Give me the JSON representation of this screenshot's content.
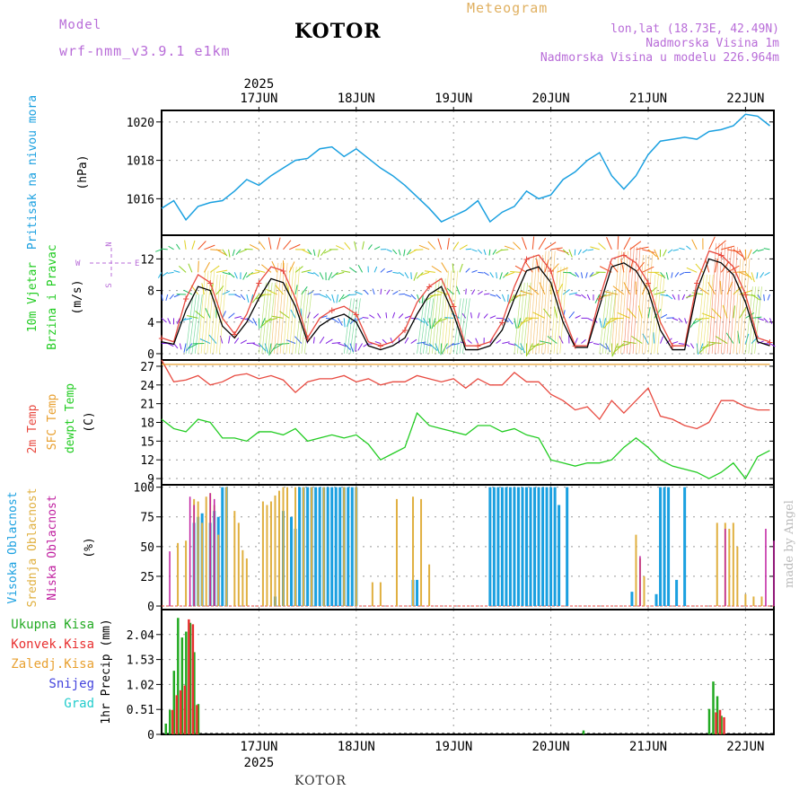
{
  "header": {
    "model_label": "Model",
    "model_name": "wrf-nmm_v3.9.1 e1km",
    "station": "KOTOR",
    "meteogram_label": "Meteogram",
    "lonlat": "lon,lat (18.73E, 42.49N)",
    "altitude": "Nadmorska Visina 1m",
    "model_altitude": "Nadmorska Visina u modelu 226.964m"
  },
  "footer": {
    "station": "KOTOR",
    "watermark": "made by Angel"
  },
  "colors": {
    "pressure": "#1aa0e0",
    "temp2m": "#e84a40",
    "sfc_temp": "#e8a030",
    "dewpoint": "#22cc22",
    "high_cloud": "#1aa0e0",
    "mid_cloud": "#e0b040",
    "low_cloud": "#c020a0",
    "total_precip": "#22aa22",
    "conv_precip": "#e83030",
    "snow": "#4444dd",
    "graupel": "#22cccc"
  },
  "chart_data": [
    {
      "type": "line",
      "name": "pressure",
      "ylabel_main": "Pritisak na nivou mora",
      "ylabel_unit": "(hPa)",
      "yticks": [
        1016,
        1018,
        1020
      ],
      "ylim": [
        1014.1,
        1020.6
      ],
      "x_hours": [
        0,
        3,
        6,
        9,
        12,
        15,
        18,
        21,
        24,
        27,
        30,
        33,
        36,
        39,
        42,
        45,
        48,
        51,
        54,
        57,
        60,
        63,
        66,
        69,
        72,
        75,
        78,
        81,
        84,
        87,
        90,
        93,
        96,
        99,
        102,
        105,
        108,
        111,
        114,
        117,
        120,
        123,
        126,
        129,
        132,
        135,
        138,
        141,
        144,
        147,
        150
      ],
      "values": [
        1015.5,
        1015.9,
        1014.9,
        1015.6,
        1015.8,
        1015.9,
        1016.4,
        1017.0,
        1016.7,
        1017.2,
        1017.6,
        1018.0,
        1018.1,
        1018.6,
        1018.7,
        1018.2,
        1018.6,
        1018.1,
        1017.6,
        1017.2,
        1016.7,
        1016.1,
        1015.5,
        1014.8,
        1015.1,
        1015.4,
        1015.9,
        1014.8,
        1015.3,
        1015.6,
        1016.4,
        1016.0,
        1016.2,
        1017.0,
        1017.4,
        1018.0,
        1018.4,
        1017.2,
        1016.5,
        1017.2,
        1018.3,
        1019.0,
        1019.1,
        1019.2,
        1019.1,
        1019.5,
        1019.6,
        1019.8,
        1020.4,
        1020.3,
        1019.8
      ]
    },
    {
      "type": "line",
      "name": "wind",
      "ylabel_main": "10m Vjetar",
      "ylabel_sub": "Brzina i Pravac",
      "ylabel_unit": "(m/s)",
      "yticks": [
        0,
        4,
        8,
        12
      ],
      "ylim": [
        -0.8,
        15
      ],
      "dir_legend": {
        "n": "N",
        "s": "S",
        "w": "W",
        "e": "E"
      },
      "x_hours": [
        0,
        3,
        6,
        9,
        12,
        15,
        18,
        21,
        24,
        27,
        30,
        33,
        36,
        39,
        42,
        45,
        48,
        51,
        54,
        57,
        60,
        63,
        66,
        69,
        72,
        75,
        78,
        81,
        84,
        87,
        90,
        93,
        96,
        99,
        102,
        105,
        108,
        111,
        114,
        117,
        120,
        123,
        126,
        129,
        132,
        135,
        138,
        141,
        144,
        147,
        150
      ],
      "series": [
        {
          "name": "speed",
          "values": [
            1.5,
            1.2,
            5.5,
            8.5,
            8.0,
            3.5,
            2.0,
            4.0,
            7.0,
            9.5,
            9.0,
            6.0,
            1.5,
            3.5,
            4.5,
            5.0,
            4.0,
            1.0,
            0.5,
            1.0,
            2.0,
            5.0,
            7.5,
            8.5,
            5.0,
            0.5,
            0.5,
            1.0,
            3.0,
            7.0,
            10.5,
            11.0,
            9.0,
            4.0,
            0.8,
            0.8,
            6.0,
            11.0,
            11.5,
            10.5,
            8.0,
            3.0,
            0.5,
            0.5,
            8.0,
            12.0,
            11.5,
            10.0,
            6.5,
            1.5,
            1.0
          ]
        },
        {
          "name": "gust",
          "values": [
            2.0,
            1.5,
            7.0,
            10.0,
            9.0,
            4.5,
            2.5,
            5.0,
            9.0,
            11.0,
            10.5,
            7.0,
            2.0,
            4.5,
            5.5,
            6.0,
            5.0,
            1.5,
            1.0,
            1.5,
            3.0,
            6.5,
            8.5,
            9.5,
            6.0,
            1.0,
            1.0,
            1.5,
            4.0,
            8.5,
            12.0,
            12.5,
            10.5,
            5.0,
            1.0,
            1.0,
            7.0,
            12.0,
            12.5,
            11.5,
            9.0,
            4.0,
            1.0,
            1.0,
            9.0,
            13.0,
            12.5,
            11.0,
            7.5,
            2.0,
            1.5
          ]
        }
      ]
    },
    {
      "type": "line",
      "name": "temperature",
      "ylabel_main": "2m Temp",
      "ylabel_sub": "SFC Temp",
      "ylabel_sub2": "dewpt Temp",
      "ylabel_unit": "(C)",
      "yticks": [
        9,
        12,
        15,
        18,
        21,
        24,
        27
      ],
      "ylim": [
        8,
        28
      ],
      "x_hours": [
        0,
        3,
        6,
        9,
        12,
        15,
        18,
        21,
        24,
        27,
        30,
        33,
        36,
        39,
        42,
        45,
        48,
        51,
        54,
        57,
        60,
        63,
        66,
        69,
        72,
        75,
        78,
        81,
        84,
        87,
        90,
        93,
        96,
        99,
        102,
        105,
        108,
        111,
        114,
        117,
        120,
        123,
        126,
        129,
        132,
        135,
        138,
        141,
        144,
        147,
        150
      ],
      "series": [
        {
          "name": "2m temp",
          "values": [
            28.0,
            24.5,
            24.8,
            25.5,
            24.0,
            24.5,
            25.5,
            25.8,
            25.0,
            25.5,
            24.8,
            22.8,
            24.5,
            25.0,
            25.0,
            25.5,
            24.5,
            25.0,
            24.0,
            24.5,
            24.5,
            25.5,
            25.0,
            24.5,
            25.0,
            23.5,
            25.0,
            24.0,
            24.0,
            26.0,
            24.5,
            24.5,
            22.5,
            21.5,
            20.0,
            20.5,
            18.5,
            21.5,
            19.5,
            21.5,
            23.5,
            19.0,
            18.5,
            17.5,
            17.0,
            18.0,
            21.5,
            21.5,
            20.5,
            20.0,
            20.0
          ]
        },
        {
          "name": "sfc temp",
          "values": [
            27.3,
            27.3,
            27.3,
            27.3,
            27.3,
            27.3,
            27.3,
            27.3,
            27.3,
            27.3,
            27.3,
            27.3,
            27.3,
            27.3,
            27.3,
            27.3,
            27.3,
            27.3,
            27.3,
            27.3,
            27.3,
            27.3,
            27.3,
            27.3,
            27.3,
            27.3,
            27.3,
            27.3,
            27.3,
            27.3,
            27.3,
            27.3,
            27.3,
            27.3,
            27.3,
            27.3,
            27.3,
            27.3,
            27.3,
            27.3,
            27.3,
            27.3,
            27.3,
            27.3,
            27.3,
            27.3,
            27.3,
            27.3,
            27.3,
            27.3,
            27.3
          ]
        },
        {
          "name": "dewpoint",
          "values": [
            18.5,
            17.0,
            16.5,
            18.5,
            18.0,
            15.5,
            15.5,
            15.0,
            16.5,
            16.5,
            16.0,
            17.0,
            15.0,
            15.5,
            16.0,
            15.5,
            16.0,
            14.5,
            12.0,
            13.0,
            14.0,
            19.5,
            17.5,
            17.0,
            16.5,
            16.0,
            17.5,
            17.5,
            16.5,
            17.0,
            16.0,
            15.5,
            12.0,
            11.5,
            11.0,
            11.5,
            11.5,
            12.0,
            14.0,
            15.5,
            14.0,
            12.0,
            11.0,
            10.5,
            10.0,
            9.0,
            10.0,
            11.5,
            9.0,
            12.5,
            13.5
          ]
        }
      ]
    },
    {
      "type": "bar",
      "name": "cloud_cover",
      "ylabel_main": "Visoka Oblacnost",
      "ylabel_sub": "Srednja Oblacnost",
      "ylabel_sub2": "Niska Oblacnost",
      "ylabel_unit": "(%)",
      "yticks": [
        0,
        25,
        50,
        75,
        100
      ],
      "ylim": [
        -3,
        102
      ],
      "series": [
        {
          "name": "high",
          "points": [
            [
              8,
              70
            ],
            [
              9,
              75
            ],
            [
              10,
              78
            ],
            [
              12,
              70
            ],
            [
              13,
              80
            ],
            [
              14,
              75
            ],
            [
              15,
              100
            ],
            [
              16,
              100
            ],
            [
              28,
              8
            ],
            [
              30,
              80
            ],
            [
              32,
              75
            ],
            [
              33,
              65
            ],
            [
              34,
              100
            ],
            [
              35,
              100
            ],
            [
              36,
              100
            ],
            [
              37,
              100
            ],
            [
              38,
              100
            ],
            [
              39,
              100
            ],
            [
              40,
              100
            ],
            [
              41,
              100
            ],
            [
              42,
              100
            ],
            [
              43,
              100
            ],
            [
              44,
              100
            ],
            [
              45,
              100
            ],
            [
              46,
              100
            ],
            [
              47,
              100
            ],
            [
              48,
              100
            ],
            [
              62,
              22
            ],
            [
              63,
              22
            ],
            [
              81,
              100
            ],
            [
              82,
              100
            ],
            [
              83,
              100
            ],
            [
              84,
              100
            ],
            [
              85,
              100
            ],
            [
              86,
              100
            ],
            [
              87,
              100
            ],
            [
              88,
              100
            ],
            [
              89,
              100
            ],
            [
              90,
              100
            ],
            [
              91,
              100
            ],
            [
              92,
              100
            ],
            [
              93,
              100
            ],
            [
              94,
              100
            ],
            [
              95,
              100
            ],
            [
              96,
              100
            ],
            [
              97,
              100
            ],
            [
              98,
              85
            ],
            [
              100,
              100
            ],
            [
              116,
              12
            ],
            [
              122,
              10
            ],
            [
              123,
              100
            ],
            [
              124,
              100
            ],
            [
              125,
              100
            ],
            [
              127,
              22
            ],
            [
              129,
              100
            ]
          ]
        },
        {
          "name": "mid",
          "points": [
            [
              4,
              53
            ],
            [
              6,
              55
            ],
            [
              8,
              90
            ],
            [
              9,
              88
            ],
            [
              10,
              70
            ],
            [
              11,
              92
            ],
            [
              12,
              95
            ],
            [
              13,
              85
            ],
            [
              14,
              60
            ],
            [
              16,
              100
            ],
            [
              18,
              80
            ],
            [
              19,
              70
            ],
            [
              20,
              47
            ],
            [
              21,
              40
            ],
            [
              25,
              88
            ],
            [
              26,
              85
            ],
            [
              27,
              88
            ],
            [
              28,
              93
            ],
            [
              29,
              97
            ],
            [
              30,
              100
            ],
            [
              31,
              100
            ],
            [
              33,
              100
            ],
            [
              35,
              100
            ],
            [
              37,
              100
            ],
            [
              40,
              100
            ],
            [
              45,
              100
            ],
            [
              48,
              100
            ],
            [
              52,
              20
            ],
            [
              54,
              20
            ],
            [
              58,
              90
            ],
            [
              62,
              92
            ],
            [
              64,
              90
            ],
            [
              66,
              35
            ],
            [
              117,
              60
            ],
            [
              118,
              40
            ],
            [
              119,
              25
            ],
            [
              137,
              70
            ],
            [
              139,
              70
            ],
            [
              140,
              65
            ],
            [
              141,
              70
            ],
            [
              142,
              50
            ],
            [
              144,
              10
            ],
            [
              146,
              8
            ],
            [
              148,
              8
            ]
          ]
        },
        {
          "name": "low",
          "points": [
            [
              2,
              46
            ],
            [
              7,
              92
            ],
            [
              8,
              85
            ],
            [
              12,
              95
            ],
            [
              13,
              90
            ],
            [
              118,
              42
            ],
            [
              139,
              65
            ],
            [
              149,
              65
            ],
            [
              151,
              55
            ]
          ]
        }
      ]
    },
    {
      "type": "bar",
      "name": "precipitation",
      "ylabel_main": "1hr Precip (mm)",
      "legend": [
        "Ukupna Kisa",
        "Konvek.Kisa",
        "Zaledj.Kisa",
        "Snijeg",
        "Grad"
      ],
      "yticks": [
        0,
        0.51,
        1.02,
        1.53,
        2.04
      ],
      "ylim": [
        0,
        2.55
      ],
      "series": [
        {
          "name": "total",
          "points": [
            [
              1,
              0.22
            ],
            [
              2,
              0.5
            ],
            [
              3,
              1.3
            ],
            [
              4,
              2.38
            ],
            [
              5,
              1.98
            ],
            [
              6,
              2.1
            ],
            [
              7,
              2.28
            ],
            [
              8,
              1.68
            ],
            [
              9,
              0.62
            ],
            [
              104,
              0.08
            ],
            [
              135,
              0.52
            ],
            [
              136,
              1.08
            ],
            [
              137,
              0.78
            ],
            [
              138,
              0.38
            ]
          ]
        },
        {
          "name": "convective",
          "points": [
            [
              2,
              0.5
            ],
            [
              3,
              0.8
            ],
            [
              4,
              0.9
            ],
            [
              5,
              1.0
            ],
            [
              6,
              2.35
            ],
            [
              7,
              2.25
            ],
            [
              8,
              0.6
            ],
            [
              136,
              0.45
            ],
            [
              137,
              0.5
            ],
            [
              138,
              0.35
            ]
          ]
        }
      ]
    }
  ],
  "xaxis": {
    "hours_per_day": 24,
    "day_labels": [
      "17JUN",
      "18JUN",
      "19JUN",
      "20JUN",
      "21JUN",
      "22JUN"
    ],
    "year_label": "2025"
  }
}
